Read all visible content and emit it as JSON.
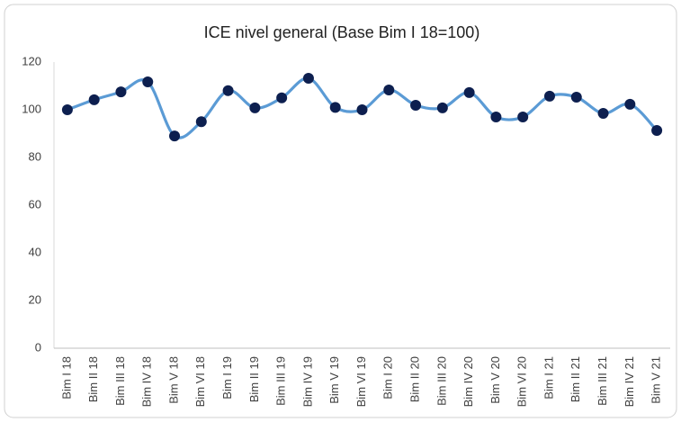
{
  "chart_data": {
    "type": "line",
    "title": "ICE nivel general (Base Bim I 18=100)",
    "categories": [
      "Bim I 18",
      "Bim II 18",
      "Bim III 18",
      "Bim IV 18",
      "Bim V 18",
      "Bim VI 18",
      "Bim I 19",
      "Bim II 19",
      "Bim III 19",
      "Bim IV 19",
      "Bim V 19",
      "Bim VI 19",
      "Bim I 20",
      "Bim II 20",
      "Bim III 20",
      "Bim IV 20",
      "Bim V 20",
      "Bim VI 20",
      "Bim I 21",
      "Bim II 21",
      "Bim III 21",
      "Bim IV 21",
      "Bim V 21"
    ],
    "values": [
      100,
      104.2,
      107.5,
      111.7,
      89,
      95,
      108,
      100.8,
      105,
      113.2,
      101,
      100,
      108.3,
      101.9,
      100.8,
      107.2,
      97,
      97,
      105.7,
      105.3,
      98.5,
      102.3,
      91.3
    ],
    "color": "#5b9bd5",
    "marker_color": "#0d1f4f",
    "smooth": true,
    "grid": false,
    "ylim": [
      0,
      120
    ],
    "yticks": [
      0,
      20,
      40,
      60,
      80,
      100,
      120
    ]
  }
}
